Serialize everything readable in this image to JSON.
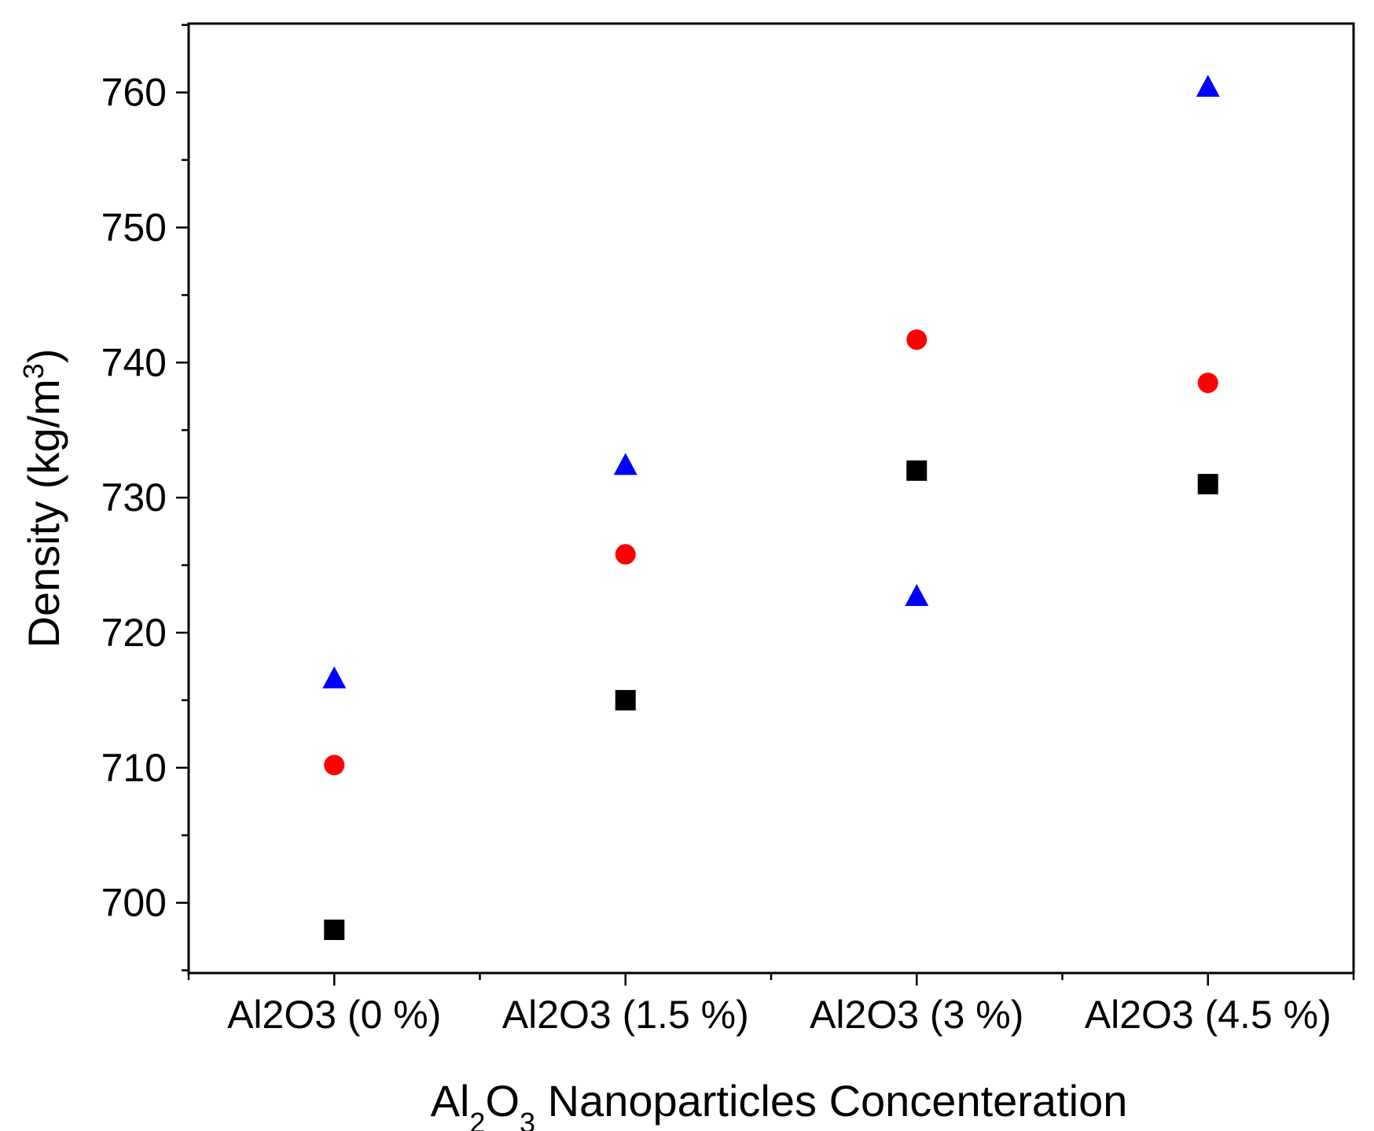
{
  "chart_data": {
    "type": "scatter",
    "categories": [
      "Al2O3 (0 %)",
      "Al2O3 (1.5 %)",
      "Al2O3 (3 %)",
      "Al2O3 (4.5 %)"
    ],
    "series": [
      {
        "name": "square series",
        "marker": "square",
        "color": "#000000",
        "values": [
          698,
          715,
          732,
          731
        ]
      },
      {
        "name": "circle series",
        "marker": "circle",
        "color": "#ff0000",
        "values": [
          710.2,
          725.8,
          741.7,
          738.5
        ]
      },
      {
        "name": "triangle series",
        "marker": "triangle",
        "color": "#0000ff",
        "values": [
          716.5,
          732.3,
          722.6,
          760.3
        ]
      }
    ],
    "xlabel": {
      "base": "Al",
      "sub1": "2",
      "mid": "O",
      "sub2": "3",
      "rest": " Nanoparticles Concenteration"
    },
    "ylabel": {
      "main": "Density (kg/m",
      "sup": "3",
      "close": ")"
    },
    "yticks": [
      700,
      710,
      720,
      730,
      740,
      750,
      760
    ],
    "ylim": [
      694.8,
      765.1
    ],
    "grid": false,
    "legend": "none"
  }
}
